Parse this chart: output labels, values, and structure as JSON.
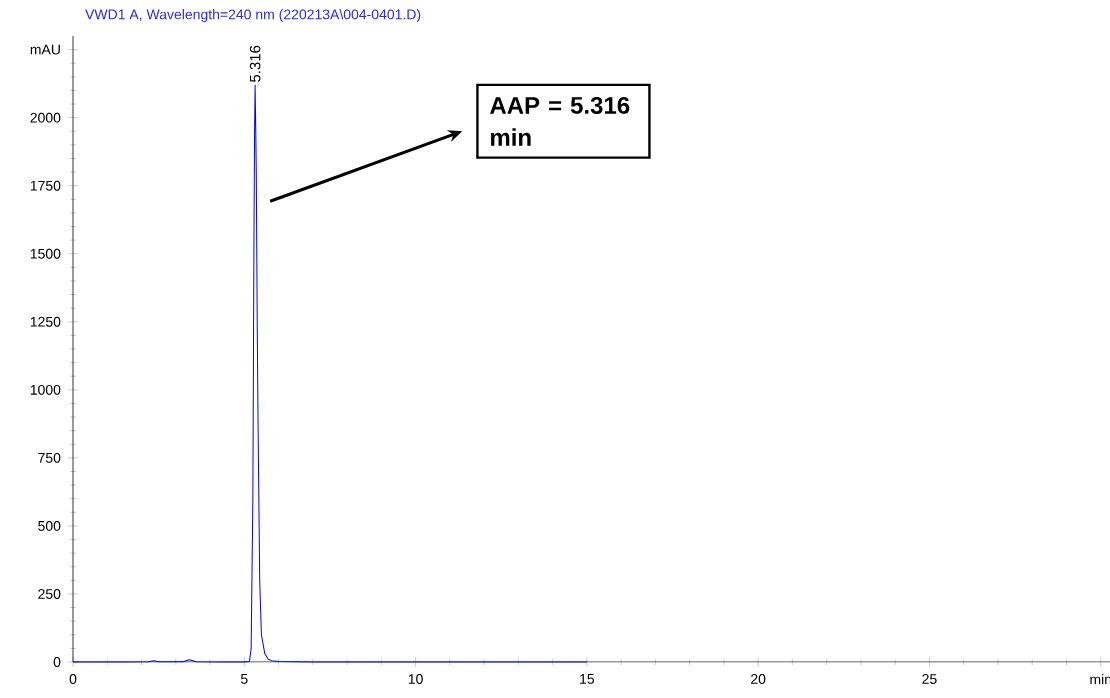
{
  "chart_data": {
    "type": "line",
    "title": "VWD1 A, Wavelength=240 nm (220213A\\004-0401.D)",
    "x": [
      0,
      1.5,
      2.2,
      2.35,
      2.5,
      3.2,
      3.4,
      3.6,
      4.5,
      5.0,
      5.15,
      5.2,
      5.25,
      5.28,
      5.3,
      5.316,
      5.33,
      5.35,
      5.38,
      5.4,
      5.45,
      5.5,
      5.6,
      5.7,
      5.8,
      6.0,
      7.0,
      15.0
    ],
    "series": [
      {
        "color": "#0000ff",
        "values": [
          0,
          0,
          1,
          5,
          1,
          1,
          8,
          1,
          0,
          0,
          2,
          50,
          600,
          1500,
          1950,
          2120,
          2000,
          1800,
          1200,
          900,
          300,
          100,
          30,
          10,
          5,
          2,
          0,
          0
        ]
      }
    ],
    "xlim": [
      0,
      30.3
    ],
    "ylim": [
      0,
      2300
    ],
    "xticks": [
      0,
      5,
      10,
      15,
      20,
      25,
      {
        "value": 30,
        "label": "min"
      }
    ],
    "yticks": [
      0,
      250,
      500,
      750,
      1000,
      1250,
      1500,
      1750,
      2000,
      {
        "value": 2250,
        "label": "mAU"
      }
    ],
    "marker": "none",
    "line_style": "solid",
    "annotations": [
      {
        "text": "5.316",
        "x": 5.316,
        "y": 2120
      },
      "AAP = 5.316 min"
    ]
  }
}
